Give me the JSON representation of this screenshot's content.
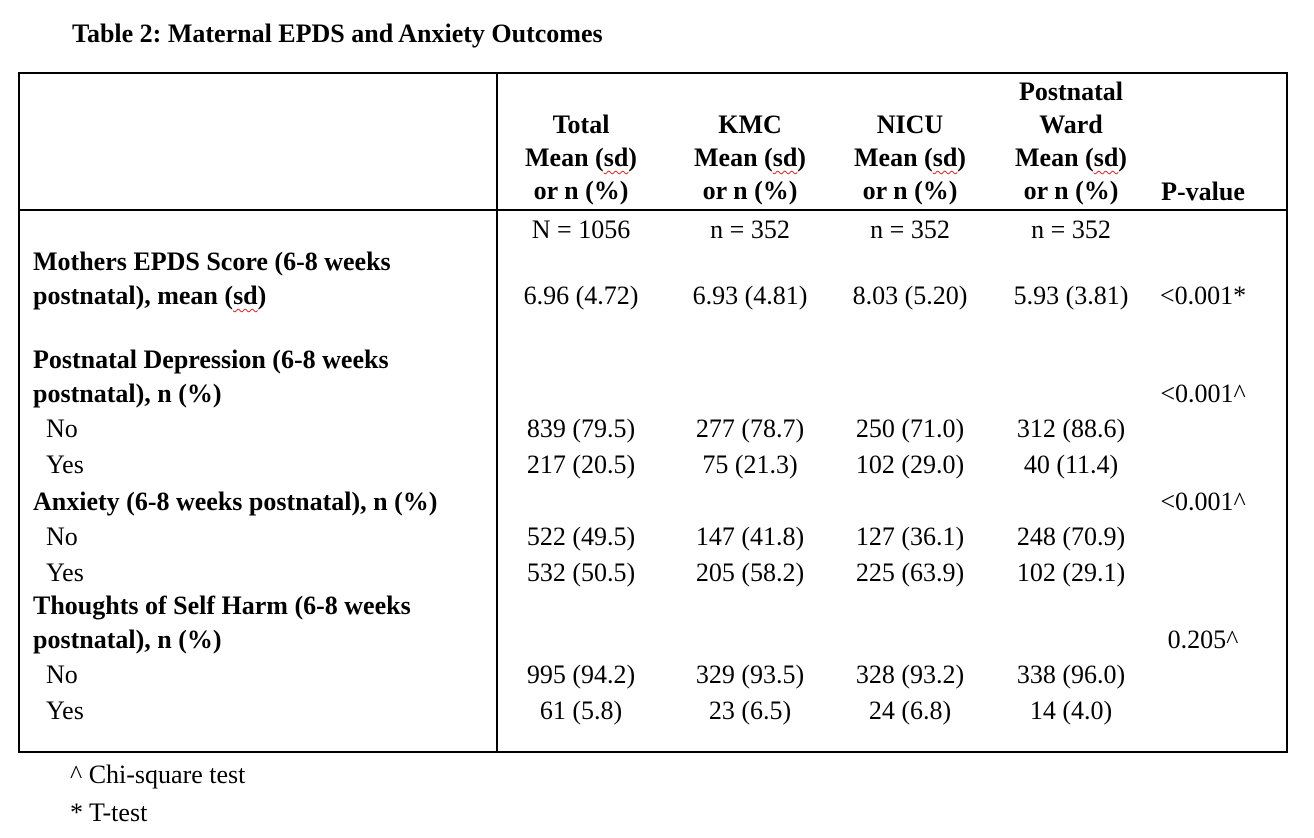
{
  "title": "Table 2: Maternal EPDS and Anxiety Outcomes",
  "columns": [
    {
      "lines": [
        "",
        "Total",
        "Mean (sd)",
        "or n (%)"
      ],
      "n": "N = 1056"
    },
    {
      "lines": [
        "",
        "KMC",
        "Mean (sd)",
        "or n (%)"
      ],
      "n": "n = 352"
    },
    {
      "lines": [
        "",
        "NICU",
        "Mean (sd)",
        "or n (%)"
      ],
      "n": "n = 352"
    },
    {
      "lines": [
        "Postnatal",
        "Ward",
        "Mean (sd)",
        "or n (%)"
      ],
      "n": "n = 352"
    }
  ],
  "pvalue_header": "P-value",
  "rows": {
    "epds": {
      "label1": "Mothers EPDS Score (6-8 weeks",
      "label2a": "postnatal), mean (",
      "label2b": "sd",
      "label2c": ")",
      "values": [
        "6.96 (4.72)",
        "6.93 (4.81)",
        "8.03 (5.20)",
        "5.93 (3.81)"
      ],
      "p": "<0.001*"
    },
    "depression": {
      "label1": "Postnatal Depression (6-8 weeks",
      "label2": "postnatal), n (%)",
      "p": "<0.001^",
      "no": {
        "label": "No",
        "values": [
          "839 (79.5)",
          "277 (78.7)",
          "250 (71.0)",
          "312 (88.6)"
        ]
      },
      "yes": {
        "label": "Yes",
        "values": [
          "217 (20.5)",
          "75 (21.3)",
          "102 (29.0)",
          "40 (11.4)"
        ]
      }
    },
    "anxiety": {
      "label1": "Anxiety (6-8 weeks postnatal), n (%)",
      "p": "<0.001^",
      "no": {
        "label": "No",
        "values": [
          "522 (49.5)",
          "147 (41.8)",
          "127 (36.1)",
          "248 (70.9)"
        ]
      },
      "yes": {
        "label": "Yes",
        "values": [
          "532 (50.5)",
          "205 (58.2)",
          "225 (63.9)",
          "102 (29.1)"
        ]
      }
    },
    "selfharm": {
      "label1": "Thoughts of Self Harm (6-8 weeks",
      "label2": "postnatal), n (%)",
      "p": "0.205^",
      "no": {
        "label": "No",
        "values": [
          "995 (94.2)",
          "329 (93.5)",
          "328 (93.2)",
          "338 (96.0)"
        ]
      },
      "yes": {
        "label": "Yes",
        "values": [
          "61 (5.8)",
          "23 (6.5)",
          "24 (6.8)",
          "14 (4.0)"
        ]
      }
    }
  },
  "footnotes": [
    "^ Chi-square test",
    "* T-test"
  ]
}
